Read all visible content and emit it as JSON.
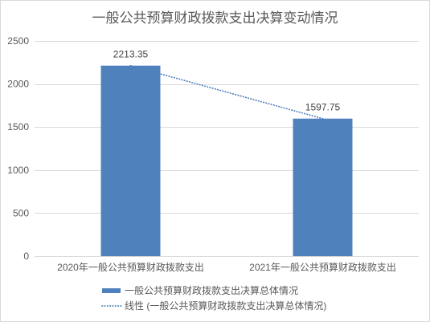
{
  "chart_data": {
    "type": "bar",
    "title": "一般公共预算财政拨款支出决算变动情况",
    "categories": [
      "2020年一般公共预算财政拨款支出",
      "2021年一般公共预算财政拨款支出"
    ],
    "series": [
      {
        "name": "一般公共预算财政拨款支出决算总体情况",
        "values": [
          2213.35,
          1597.75
        ],
        "color": "#4F81BD"
      }
    ],
    "trendline": {
      "type": "linear",
      "name": "线性 (一般公共预算财政拨款支出决算总体情况)",
      "color": "#4F81BD"
    },
    "ylim": [
      0,
      2500
    ],
    "yticks": [
      0,
      500,
      1000,
      1500,
      2000,
      2500
    ],
    "grid": true,
    "legend": "bottom",
    "data_labels": true
  }
}
